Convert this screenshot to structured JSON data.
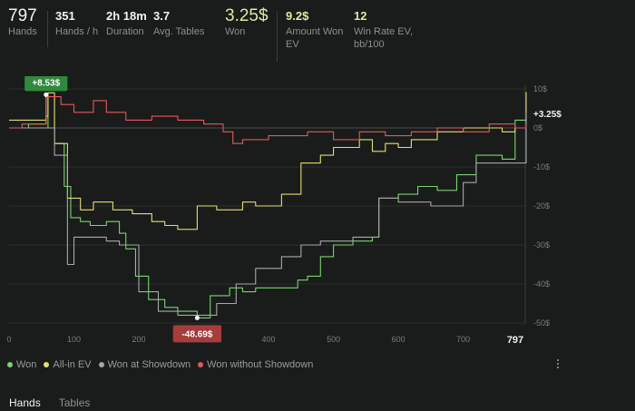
{
  "stats": [
    {
      "value": "797",
      "label": "Hands",
      "big": true
    },
    {
      "value": "351",
      "label": "Hands / h"
    },
    {
      "value": "2h 18m",
      "label": "Duration"
    },
    {
      "value": "3.7",
      "label": "Avg. Tables"
    },
    {
      "value": "3.25$",
      "label": "Won",
      "big": true,
      "green": true
    },
    {
      "value": "9.2$",
      "label": "Amount Won EV",
      "green": true
    },
    {
      "value": "12",
      "label": "Win Rate EV, bb/100",
      "green": true
    }
  ],
  "legend": [
    {
      "name": "Won",
      "color": "#77d66c"
    },
    {
      "name": "All-in EV",
      "color": "#e2e06a"
    },
    {
      "name": "Won at Showdown",
      "color": "#a7a7a7"
    },
    {
      "name": "Won without Showdown",
      "color": "#e05a5a"
    }
  ],
  "tabs": [
    {
      "label": "Hands",
      "active": true
    },
    {
      "label": "Tables",
      "active": false
    }
  ],
  "chart_data": {
    "type": "line",
    "xlim": [
      0,
      797
    ],
    "ylim": [
      -50,
      10
    ],
    "x_ticks": [
      "0",
      "100",
      "200",
      "300",
      "400",
      "500",
      "600",
      "700"
    ],
    "x_end_label": "797",
    "y_ticks": [
      "10$",
      "0$",
      "-10$",
      "-20$",
      "-30$",
      "-40$",
      "-50$"
    ],
    "y_tick_values": [
      10,
      0,
      -10,
      -20,
      -30,
      -40,
      -50
    ],
    "annotations": [
      {
        "text": "+8.53$",
        "x": 57,
        "y": 8.53,
        "color": "#2f8a3b"
      },
      {
        "text": "-48.69$",
        "x": 290,
        "y": -48.69,
        "color": "#a63c3c"
      },
      {
        "text": "+3.25$",
        "x": 797,
        "y": 3.25
      }
    ],
    "series": [
      {
        "name": "Won",
        "color": "#77d66c",
        "x": [
          0,
          30,
          57,
          60,
          70,
          85,
          95,
          110,
          125,
          150,
          170,
          180,
          195,
          215,
          240,
          260,
          290,
          310,
          340,
          360,
          380,
          420,
          445,
          460,
          480,
          500,
          530,
          560,
          570,
          600,
          630,
          660,
          690,
          720,
          760,
          780,
          797
        ],
        "y": [
          0,
          1,
          8.5,
          0,
          -4,
          -15,
          -23,
          -24,
          -25,
          -24,
          -27,
          -31,
          -38,
          -44,
          -46,
          -47,
          -48.7,
          -43,
          -41,
          -42,
          -41,
          -41,
          -39,
          -38,
          -33,
          -30,
          -29,
          -28,
          -18,
          -17,
          -15,
          -16,
          -12,
          -7,
          -8,
          2,
          3.25
        ]
      },
      {
        "name": "All-in EV",
        "color": "#e2e06a",
        "x": [
          0,
          57,
          60,
          70,
          90,
          110,
          130,
          160,
          190,
          220,
          240,
          260,
          290,
          320,
          360,
          380,
          420,
          450,
          480,
          500,
          540,
          560,
          580,
          600,
          620,
          660,
          700,
          720,
          760,
          780,
          797
        ],
        "y": [
          2,
          3,
          9,
          -4,
          -18,
          -21,
          -19,
          -21,
          -22,
          -24,
          -25,
          -26,
          -20,
          -21,
          -19,
          -20,
          -17,
          -9,
          -7,
          -5,
          -3,
          -6,
          -4,
          -5,
          -3,
          -1,
          0,
          0,
          -1,
          0,
          9.2
        ]
      },
      {
        "name": "Won at Showdown",
        "color": "#a7a7a7",
        "x": [
          0,
          57,
          60,
          70,
          90,
          100,
          110,
          150,
          170,
          180,
          200,
          230,
          260,
          290,
          320,
          350,
          380,
          420,
          450,
          480,
          500,
          530,
          560,
          570,
          600,
          650,
          690,
          700,
          720,
          760,
          780,
          797
        ],
        "y": [
          0,
          0,
          0,
          -7,
          -35,
          -28,
          -28,
          -29,
          -30,
          -30,
          -42,
          -47,
          -48,
          -48,
          -45,
          -40,
          -36,
          -33,
          -30,
          -29,
          -29,
          -28,
          -28,
          -18,
          -19,
          -20,
          -20,
          -14,
          -9,
          -9,
          -9,
          4
        ]
      },
      {
        "name": "Won without Showdown",
        "color": "#e05a5a",
        "x": [
          0,
          20,
          57,
          80,
          100,
          130,
          150,
          180,
          220,
          260,
          300,
          330,
          345,
          360,
          400,
          430,
          460,
          500,
          540,
          580,
          620,
          660,
          700,
          740,
          780,
          797
        ],
        "y": [
          0,
          1,
          8,
          6,
          4,
          7,
          4,
          2,
          3,
          2,
          1,
          -1,
          -4,
          -3,
          -2,
          -2,
          -1,
          -3,
          -1,
          -2,
          -1,
          0,
          -1,
          1,
          0,
          1
        ]
      }
    ]
  }
}
